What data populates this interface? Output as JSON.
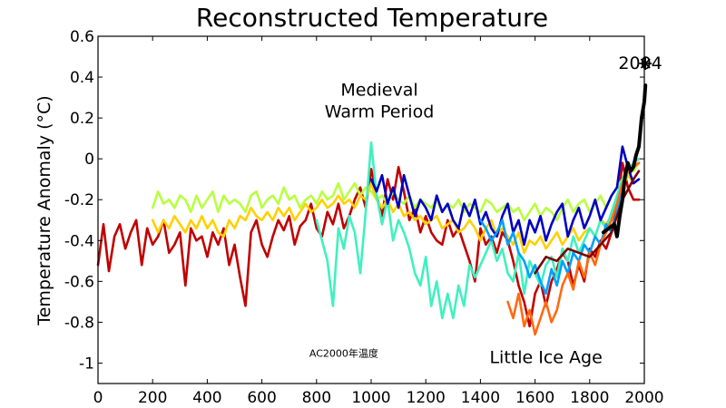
{
  "chart_data": {
    "type": "line",
    "title": "Reconstructed Temperature",
    "xlabel": "",
    "ylabel": "Temperature Anomaly (°C)",
    "xlim": [
      0,
      2000
    ],
    "ylim": [
      -1.1,
      0.6
    ],
    "xticks": [
      0,
      200,
      400,
      600,
      800,
      1000,
      1200,
      1400,
      1600,
      1800,
      2000
    ],
    "yticks": [
      0.6,
      0.4,
      0.2,
      0,
      -0.2,
      -0.4,
      -0.6,
      -0.8,
      -1
    ],
    "grid": false,
    "annotations": [
      {
        "lines": [
          "Medieval",
          "Warm Period"
        ],
        "x": 1030,
        "y": 0.31
      },
      {
        "lines": [
          "Little Ice Age"
        ],
        "x": 1640,
        "y": -1.0
      },
      {
        "lines": [
          "AC2000年温度"
        ],
        "x": 900,
        "y": -0.97
      },
      {
        "lines": [
          "2004"
        ],
        "x": 1905,
        "y": 0.44
      }
    ],
    "marker": {
      "label": "2004",
      "x": 2004,
      "y": 0.44,
      "symbol": "asterisk"
    },
    "series": [
      {
        "color": "#C00000",
        "x": [
          0,
          20,
          40,
          60,
          80,
          100,
          120,
          140,
          160,
          180,
          200,
          220,
          240,
          260,
          280,
          300,
          320,
          340,
          360,
          380,
          400,
          420,
          440,
          460,
          480,
          500,
          520,
          540,
          560,
          580,
          600,
          620,
          640,
          660,
          680,
          700,
          720,
          740,
          760,
          780,
          800,
          820,
          840,
          860,
          880,
          900,
          920,
          940,
          960,
          980,
          1000,
          1020,
          1040,
          1060,
          1080,
          1100,
          1120,
          1140,
          1160,
          1180,
          1200,
          1220,
          1240,
          1260,
          1280,
          1300,
          1320,
          1340,
          1360,
          1380,
          1400,
          1420,
          1440,
          1460,
          1480,
          1500,
          1520,
          1540,
          1560,
          1580,
          1600,
          1620,
          1640,
          1660,
          1680,
          1700,
          1720,
          1740,
          1760,
          1780,
          1800,
          1820,
          1840,
          1860,
          1880,
          1900,
          1920,
          1940,
          1960,
          1980
        ],
        "values": [
          -0.52,
          -0.32,
          -0.55,
          -0.38,
          -0.32,
          -0.44,
          -0.36,
          -0.3,
          -0.52,
          -0.34,
          -0.42,
          -0.38,
          -0.3,
          -0.46,
          -0.42,
          -0.36,
          -0.62,
          -0.34,
          -0.4,
          -0.38,
          -0.48,
          -0.36,
          -0.42,
          -0.34,
          -0.52,
          -0.42,
          -0.58,
          -0.72,
          -0.36,
          -0.3,
          -0.42,
          -0.48,
          -0.38,
          -0.3,
          -0.35,
          -0.28,
          -0.42,
          -0.33,
          -0.3,
          -0.22,
          -0.34,
          -0.38,
          -0.26,
          -0.32,
          -0.22,
          -0.34,
          -0.28,
          -0.2,
          -0.14,
          -0.24,
          -0.05,
          -0.18,
          -0.28,
          -0.1,
          -0.2,
          -0.04,
          -0.16,
          -0.3,
          -0.24,
          -0.36,
          -0.28,
          -0.36,
          -0.4,
          -0.42,
          -0.3,
          -0.38,
          -0.34,
          -0.42,
          -0.5,
          -0.6,
          -0.34,
          -0.42,
          -0.38,
          -0.46,
          -0.36,
          -0.4,
          -0.5,
          -0.62,
          -0.7,
          -0.82,
          -0.66,
          -0.6,
          -0.72,
          -0.6,
          -0.54,
          -0.46,
          -0.5,
          -0.62,
          -0.52,
          -0.6,
          -0.44,
          -0.48,
          -0.4,
          -0.44,
          -0.36,
          -0.24,
          -0.02,
          -0.14,
          -0.2,
          -0.2
        ]
      },
      {
        "color": "#B8FF40",
        "x": [
          200,
          220,
          240,
          260,
          280,
          300,
          320,
          340,
          360,
          380,
          400,
          420,
          440,
          460,
          480,
          500,
          520,
          540,
          560,
          580,
          600,
          620,
          640,
          660,
          680,
          700,
          720,
          740,
          760,
          780,
          800,
          820,
          840,
          860,
          880,
          900,
          920,
          940,
          960,
          980,
          1000,
          1020,
          1040,
          1060,
          1080,
          1100,
          1120,
          1140,
          1160,
          1180,
          1200,
          1220,
          1240,
          1260,
          1280,
          1300,
          1320,
          1340,
          1360,
          1380,
          1400,
          1420,
          1440,
          1460,
          1480,
          1500,
          1520,
          1540,
          1560,
          1580,
          1600,
          1620,
          1640,
          1660,
          1680,
          1700,
          1720,
          1740,
          1760,
          1780,
          1800,
          1820,
          1840,
          1860,
          1880,
          1900,
          1920,
          1940,
          1960,
          1980
        ],
        "values": [
          -0.24,
          -0.16,
          -0.22,
          -0.2,
          -0.24,
          -0.18,
          -0.2,
          -0.26,
          -0.18,
          -0.24,
          -0.2,
          -0.16,
          -0.26,
          -0.18,
          -0.22,
          -0.2,
          -0.22,
          -0.26,
          -0.18,
          -0.16,
          -0.24,
          -0.2,
          -0.18,
          -0.22,
          -0.14,
          -0.2,
          -0.18,
          -0.24,
          -0.2,
          -0.18,
          -0.22,
          -0.16,
          -0.2,
          -0.18,
          -0.12,
          -0.2,
          -0.16,
          -0.12,
          -0.18,
          -0.14,
          -0.16,
          -0.2,
          -0.18,
          -0.22,
          -0.16,
          -0.2,
          -0.22,
          -0.18,
          -0.24,
          -0.2,
          -0.22,
          -0.24,
          -0.2,
          -0.26,
          -0.22,
          -0.24,
          -0.2,
          -0.26,
          -0.22,
          -0.24,
          -0.26,
          -0.2,
          -0.22,
          -0.26,
          -0.24,
          -0.22,
          -0.26,
          -0.24,
          -0.3,
          -0.26,
          -0.22,
          -0.28,
          -0.24,
          -0.26,
          -0.3,
          -0.24,
          -0.2,
          -0.26,
          -0.22,
          -0.2,
          -0.26,
          -0.22,
          -0.18,
          -0.24,
          -0.18,
          -0.14,
          -0.1,
          -0.04,
          -0.06,
          -0.02
        ]
      },
      {
        "color": "#FFD000",
        "x": [
          200,
          220,
          240,
          260,
          280,
          300,
          320,
          340,
          360,
          380,
          400,
          420,
          440,
          460,
          480,
          500,
          520,
          540,
          560,
          580,
          600,
          620,
          640,
          660,
          680,
          700,
          720,
          740,
          760,
          780,
          800,
          820,
          840,
          860,
          880,
          900,
          920,
          940,
          960,
          980,
          1000,
          1020,
          1040,
          1060,
          1080,
          1100,
          1120,
          1140,
          1160,
          1180,
          1200,
          1220,
          1240,
          1260,
          1280,
          1300,
          1320,
          1340,
          1360,
          1380,
          1400,
          1420,
          1440,
          1460,
          1480,
          1500,
          1520,
          1540,
          1560,
          1580,
          1600,
          1620,
          1640,
          1660,
          1680,
          1700,
          1720,
          1740,
          1760,
          1780,
          1800,
          1820,
          1840,
          1860,
          1880,
          1900,
          1920,
          1940,
          1960
        ],
        "values": [
          -0.3,
          -0.36,
          -0.3,
          -0.34,
          -0.28,
          -0.32,
          -0.36,
          -0.3,
          -0.34,
          -0.28,
          -0.34,
          -0.3,
          -0.36,
          -0.38,
          -0.3,
          -0.34,
          -0.28,
          -0.3,
          -0.24,
          -0.28,
          -0.3,
          -0.26,
          -0.3,
          -0.24,
          -0.28,
          -0.24,
          -0.3,
          -0.26,
          -0.22,
          -0.26,
          -0.24,
          -0.2,
          -0.24,
          -0.22,
          -0.18,
          -0.22,
          -0.2,
          -0.24,
          -0.18,
          -0.2,
          -0.12,
          -0.2,
          -0.24,
          -0.2,
          -0.26,
          -0.22,
          -0.28,
          -0.26,
          -0.3,
          -0.28,
          -0.32,
          -0.3,
          -0.28,
          -0.34,
          -0.32,
          -0.3,
          -0.36,
          -0.34,
          -0.3,
          -0.34,
          -0.4,
          -0.34,
          -0.3,
          -0.38,
          -0.34,
          -0.38,
          -0.42,
          -0.36,
          -0.46,
          -0.4,
          -0.42,
          -0.38,
          -0.44,
          -0.4,
          -0.36,
          -0.42,
          -0.38,
          -0.34,
          -0.4,
          -0.36,
          -0.34,
          -0.38,
          -0.3,
          -0.32,
          -0.28,
          -0.22,
          -0.14,
          -0.08,
          -0.12
        ]
      },
      {
        "color": "#40F0C0",
        "x": [
          800,
          820,
          840,
          860,
          880,
          900,
          920,
          940,
          960,
          980,
          1000,
          1020,
          1040,
          1060,
          1080,
          1100,
          1120,
          1140,
          1160,
          1180,
          1200,
          1220,
          1240,
          1260,
          1280,
          1300,
          1320,
          1340,
          1360,
          1380,
          1400,
          1420,
          1440,
          1460,
          1480,
          1500,
          1520,
          1540,
          1560,
          1580,
          1600,
          1620,
          1640,
          1660,
          1680,
          1700,
          1720,
          1740,
          1760,
          1780,
          1800,
          1820,
          1840,
          1860,
          1880,
          1900,
          1920,
          1940,
          1960,
          1980
        ],
        "values": [
          -0.3,
          -0.4,
          -0.5,
          -0.72,
          -0.34,
          -0.44,
          -0.28,
          -0.36,
          -0.56,
          -0.26,
          0.08,
          -0.18,
          -0.32,
          -0.2,
          -0.4,
          -0.3,
          -0.36,
          -0.44,
          -0.56,
          -0.62,
          -0.48,
          -0.72,
          -0.6,
          -0.78,
          -0.66,
          -0.78,
          -0.62,
          -0.72,
          -0.52,
          -0.58,
          -0.52,
          -0.46,
          -0.4,
          -0.5,
          -0.44,
          -0.56,
          -0.6,
          -0.46,
          -0.66,
          -0.5,
          -0.56,
          -0.62,
          -0.52,
          -0.48,
          -0.58,
          -0.44,
          -0.5,
          -0.38,
          -0.46,
          -0.4,
          -0.34,
          -0.38,
          -0.3,
          -0.34,
          -0.26,
          -0.18,
          -0.1,
          -0.06,
          -0.02,
          0.0
        ]
      },
      {
        "color": "#0000C0",
        "x": [
          1000,
          1020,
          1040,
          1060,
          1080,
          1100,
          1120,
          1140,
          1160,
          1180,
          1200,
          1220,
          1240,
          1260,
          1280,
          1300,
          1320,
          1340,
          1360,
          1380,
          1400,
          1420,
          1440,
          1460,
          1480,
          1500,
          1520,
          1540,
          1560,
          1580,
          1600,
          1620,
          1640,
          1660,
          1680,
          1700,
          1720,
          1740,
          1760,
          1780,
          1800,
          1820,
          1840,
          1860,
          1880,
          1900,
          1920,
          1940,
          1960,
          1980
        ],
        "values": [
          -0.1,
          -0.16,
          -0.08,
          -0.22,
          -0.14,
          -0.24,
          -0.08,
          -0.18,
          -0.28,
          -0.2,
          -0.24,
          -0.3,
          -0.18,
          -0.26,
          -0.22,
          -0.3,
          -0.34,
          -0.22,
          -0.28,
          -0.2,
          -0.32,
          -0.26,
          -0.34,
          -0.38,
          -0.28,
          -0.22,
          -0.36,
          -0.3,
          -0.42,
          -0.3,
          -0.36,
          -0.28,
          -0.4,
          -0.32,
          -0.26,
          -0.22,
          -0.38,
          -0.3,
          -0.24,
          -0.34,
          -0.28,
          -0.2,
          -0.3,
          -0.24,
          -0.18,
          -0.14,
          0.06,
          -0.04,
          -0.12,
          -0.1
        ]
      },
      {
        "color": "#00A0FF",
        "x": [
          1400,
          1420,
          1440,
          1460,
          1480,
          1500,
          1520,
          1540,
          1560,
          1580,
          1600,
          1620,
          1640,
          1660,
          1680,
          1700,
          1720,
          1740,
          1760,
          1780,
          1800,
          1820,
          1840,
          1860,
          1880,
          1900,
          1920,
          1940,
          1960,
          1980
        ],
        "values": [
          -0.3,
          -0.34,
          -0.4,
          -0.36,
          -0.3,
          -0.42,
          -0.36,
          -0.46,
          -0.5,
          -0.58,
          -0.52,
          -0.6,
          -0.66,
          -0.54,
          -0.62,
          -0.5,
          -0.56,
          -0.46,
          -0.5,
          -0.42,
          -0.46,
          -0.38,
          -0.42,
          -0.32,
          -0.36,
          -0.26,
          -0.14,
          -0.06,
          -0.04,
          -0.02
        ]
      },
      {
        "color": "#FF6A10",
        "x": [
          1500,
          1520,
          1540,
          1560,
          1580,
          1600,
          1620,
          1640,
          1660,
          1680,
          1700,
          1720,
          1740,
          1760,
          1780,
          1800,
          1820,
          1840,
          1860,
          1880,
          1900,
          1920,
          1940,
          1960,
          1980
        ],
        "values": [
          -0.7,
          -0.78,
          -0.66,
          -0.82,
          -0.74,
          -0.86,
          -0.78,
          -0.7,
          -0.8,
          -0.74,
          -0.62,
          -0.56,
          -0.64,
          -0.5,
          -0.58,
          -0.46,
          -0.52,
          -0.42,
          -0.36,
          -0.3,
          -0.22,
          -0.12,
          -0.06,
          -0.04,
          -0.02
        ]
      },
      {
        "color": "#7A0000",
        "x": [
          1600,
          1640,
          1680,
          1720,
          1760,
          1800,
          1840,
          1880,
          1920,
          1960,
          1980
        ],
        "values": [
          -0.56,
          -0.48,
          -0.5,
          -0.44,
          -0.46,
          -0.48,
          -0.42,
          -0.36,
          -0.2,
          -0.1,
          -0.06
        ]
      },
      {
        "color": "#000000",
        "width": 4,
        "x": [
          1850,
          1870,
          1890,
          1900,
          1910,
          1920,
          1930,
          1940,
          1950,
          1960,
          1970,
          1980,
          1990,
          2000,
          2004
        ],
        "values": [
          -0.36,
          -0.34,
          -0.32,
          -0.38,
          -0.28,
          -0.2,
          -0.08,
          -0.02,
          -0.06,
          -0.04,
          0.02,
          0.06,
          0.2,
          0.28,
          0.36
        ]
      }
    ]
  }
}
